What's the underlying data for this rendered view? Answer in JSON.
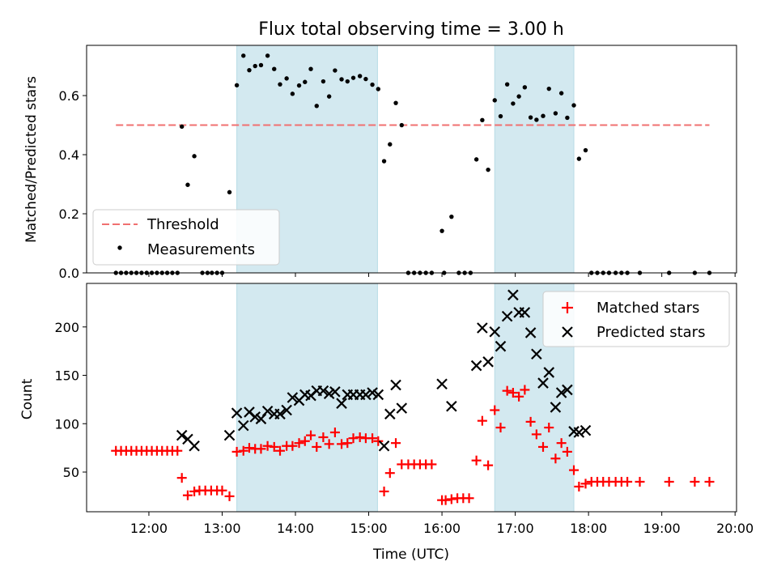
{
  "chart_data": [
    {
      "type": "scatter",
      "title": "Flux total observing time = 3.00 h",
      "xlabel": "",
      "ylabel": "Matched/Predicted stars",
      "ylim": [
        0,
        0.77
      ],
      "yticks": [
        0.0,
        0.2,
        0.4,
        0.6
      ],
      "ytick_labels": [
        "0.0",
        "0.2",
        "0.4",
        "0.6"
      ],
      "xlim_hours": [
        11.15,
        20.02
      ],
      "legend_position": "lower-left",
      "legend": [
        "Threshold",
        "Measurements"
      ],
      "colors": {
        "threshold": "#f07070",
        "measurements": "#000000",
        "shade": "#d3e9f0"
      },
      "threshold": {
        "value": 0.5,
        "x_range_hours": [
          11.55,
          19.65
        ]
      },
      "shaded_intervals_hours": [
        [
          13.2,
          15.12
        ],
        [
          16.72,
          17.8
        ]
      ],
      "measurements": [
        [
          11.55,
          0
        ],
        [
          11.62,
          0
        ],
        [
          11.69,
          0
        ],
        [
          11.76,
          0
        ],
        [
          11.83,
          0
        ],
        [
          11.9,
          0
        ],
        [
          11.97,
          0
        ],
        [
          12.04,
          0
        ],
        [
          12.11,
          0
        ],
        [
          12.18,
          0
        ],
        [
          12.25,
          0
        ],
        [
          12.32,
          0
        ],
        [
          12.39,
          0
        ],
        [
          12.45,
          0.495
        ],
        [
          12.53,
          0.298
        ],
        [
          12.62,
          0.395
        ],
        [
          12.73,
          0
        ],
        [
          12.8,
          0
        ],
        [
          12.86,
          0
        ],
        [
          12.93,
          0
        ],
        [
          13.0,
          0
        ],
        [
          13.1,
          0.273
        ],
        [
          13.2,
          0.635
        ],
        [
          13.29,
          0.735
        ],
        [
          13.37,
          0.686
        ],
        [
          13.45,
          0.7
        ],
        [
          13.53,
          0.703
        ],
        [
          13.62,
          0.735
        ],
        [
          13.71,
          0.69
        ],
        [
          13.79,
          0.638
        ],
        [
          13.88,
          0.658
        ],
        [
          13.96,
          0.606
        ],
        [
          14.05,
          0.634
        ],
        [
          14.13,
          0.646
        ],
        [
          14.21,
          0.69
        ],
        [
          14.29,
          0.565
        ],
        [
          14.38,
          0.648
        ],
        [
          14.46,
          0.597
        ],
        [
          14.54,
          0.685
        ],
        [
          14.63,
          0.655
        ],
        [
          14.71,
          0.648
        ],
        [
          14.79,
          0.66
        ],
        [
          14.88,
          0.666
        ],
        [
          14.96,
          0.656
        ],
        [
          15.05,
          0.637
        ],
        [
          15.13,
          0.622
        ],
        [
          15.21,
          0.378
        ],
        [
          15.29,
          0.435
        ],
        [
          15.37,
          0.575
        ],
        [
          15.45,
          0.5
        ],
        [
          15.54,
          0
        ],
        [
          15.62,
          0
        ],
        [
          15.7,
          0
        ],
        [
          15.78,
          0
        ],
        [
          15.86,
          0
        ],
        [
          16.0,
          0.142
        ],
        [
          16.03,
          0
        ],
        [
          16.13,
          0.19
        ],
        [
          16.23,
          0
        ],
        [
          16.31,
          0
        ],
        [
          16.39,
          0
        ],
        [
          16.47,
          0.384
        ],
        [
          16.55,
          0.517
        ],
        [
          16.63,
          0.349
        ],
        [
          16.72,
          0.584
        ],
        [
          16.8,
          0.53
        ],
        [
          16.89,
          0.638
        ],
        [
          16.97,
          0.573
        ],
        [
          17.05,
          0.597
        ],
        [
          17.13,
          0.628
        ],
        [
          17.21,
          0.526
        ],
        [
          17.29,
          0.518
        ],
        [
          17.38,
          0.531
        ],
        [
          17.46,
          0.623
        ],
        [
          17.55,
          0.54
        ],
        [
          17.63,
          0.608
        ],
        [
          17.71,
          0.525
        ],
        [
          17.8,
          0.567
        ],
        [
          17.87,
          0.386
        ],
        [
          17.96,
          0.415
        ],
        [
          18.04,
          0
        ],
        [
          18.12,
          0
        ],
        [
          18.2,
          0
        ],
        [
          18.28,
          0
        ],
        [
          18.37,
          0
        ],
        [
          18.45,
          0
        ],
        [
          18.53,
          0
        ],
        [
          18.7,
          0
        ],
        [
          19.1,
          0
        ],
        [
          19.45,
          0
        ],
        [
          19.65,
          0
        ]
      ]
    },
    {
      "type": "scatter",
      "title": "",
      "xlabel": "Time (UTC)",
      "ylabel": "Count",
      "ylim": [
        9,
        245
      ],
      "yticks": [
        50,
        100,
        150,
        200
      ],
      "ytick_labels": [
        "50",
        "100",
        "150",
        "200"
      ],
      "xlim_hours": [
        11.15,
        20.02
      ],
      "xticks_hours": [
        12,
        13,
        14,
        15,
        16,
        17,
        18,
        19,
        20
      ],
      "xtick_labels": [
        "12:00",
        "13:00",
        "14:00",
        "15:00",
        "16:00",
        "17:00",
        "18:00",
        "19:00",
        "20:00"
      ],
      "legend_position": "upper-right",
      "legend": [
        "Matched stars",
        "Predicted stars"
      ],
      "colors": {
        "matched": "#ff0000",
        "predicted": "#000000",
        "shade": "#d3e9f0"
      },
      "shaded_intervals_hours": [
        [
          13.2,
          15.12
        ],
        [
          16.72,
          17.8
        ]
      ],
      "matched_stars": [
        [
          11.55,
          72
        ],
        [
          11.62,
          72
        ],
        [
          11.69,
          72
        ],
        [
          11.76,
          72
        ],
        [
          11.83,
          72
        ],
        [
          11.9,
          72
        ],
        [
          11.97,
          72
        ],
        [
          12.04,
          72
        ],
        [
          12.11,
          72
        ],
        [
          12.18,
          72
        ],
        [
          12.25,
          72
        ],
        [
          12.32,
          72
        ],
        [
          12.39,
          72
        ],
        [
          12.45,
          44
        ],
        [
          12.53,
          26
        ],
        [
          12.62,
          30
        ],
        [
          12.69,
          31
        ],
        [
          12.77,
          31
        ],
        [
          12.85,
          31
        ],
        [
          12.93,
          31
        ],
        [
          13.0,
          31
        ],
        [
          13.1,
          25
        ],
        [
          13.2,
          71
        ],
        [
          13.29,
          72
        ],
        [
          13.37,
          75
        ],
        [
          13.45,
          74
        ],
        [
          13.53,
          74
        ],
        [
          13.62,
          77
        ],
        [
          13.71,
          76
        ],
        [
          13.79,
          72
        ],
        [
          13.88,
          77
        ],
        [
          13.96,
          77
        ],
        [
          14.05,
          80
        ],
        [
          14.13,
          82
        ],
        [
          14.21,
          88
        ],
        [
          14.29,
          76
        ],
        [
          14.38,
          86
        ],
        [
          14.46,
          79
        ],
        [
          14.54,
          91
        ],
        [
          14.63,
          79
        ],
        [
          14.71,
          80
        ],
        [
          14.79,
          85
        ],
        [
          14.88,
          86
        ],
        [
          14.96,
          85
        ],
        [
          15.05,
          85
        ],
        [
          15.13,
          82
        ],
        [
          15.21,
          30
        ],
        [
          15.29,
          49
        ],
        [
          15.37,
          80
        ],
        [
          15.45,
          58
        ],
        [
          15.54,
          58
        ],
        [
          15.62,
          58
        ],
        [
          15.7,
          58
        ],
        [
          15.78,
          58
        ],
        [
          15.86,
          58
        ],
        [
          16.0,
          21
        ],
        [
          16.05,
          21
        ],
        [
          16.13,
          22
        ],
        [
          16.21,
          23
        ],
        [
          16.29,
          23
        ],
        [
          16.37,
          23
        ],
        [
          16.47,
          62
        ],
        [
          16.55,
          103
        ],
        [
          16.63,
          57
        ],
        [
          16.72,
          114
        ],
        [
          16.8,
          96
        ],
        [
          16.89,
          134
        ],
        [
          16.97,
          132
        ],
        [
          17.05,
          128
        ],
        [
          17.13,
          135
        ],
        [
          17.21,
          102
        ],
        [
          17.29,
          89
        ],
        [
          17.38,
          76
        ],
        [
          17.46,
          96
        ],
        [
          17.55,
          64
        ],
        [
          17.63,
          80
        ],
        [
          17.71,
          71
        ],
        [
          17.8,
          52
        ],
        [
          17.87,
          35
        ],
        [
          17.96,
          38
        ],
        [
          18.04,
          40
        ],
        [
          18.12,
          40
        ],
        [
          18.2,
          40
        ],
        [
          18.28,
          40
        ],
        [
          18.37,
          40
        ],
        [
          18.45,
          40
        ],
        [
          18.53,
          40
        ],
        [
          18.7,
          40
        ],
        [
          19.1,
          40
        ],
        [
          19.45,
          40
        ],
        [
          19.65,
          40
        ]
      ],
      "predicted_stars": [
        [
          12.45,
          88
        ],
        [
          12.53,
          84
        ],
        [
          12.62,
          77
        ],
        [
          13.1,
          88
        ],
        [
          13.2,
          111
        ],
        [
          13.29,
          98
        ],
        [
          13.37,
          112
        ],
        [
          13.45,
          107
        ],
        [
          13.53,
          105
        ],
        [
          13.62,
          113
        ],
        [
          13.71,
          110
        ],
        [
          13.79,
          110
        ],
        [
          13.88,
          114
        ],
        [
          13.96,
          127
        ],
        [
          14.05,
          124
        ],
        [
          14.13,
          130
        ],
        [
          14.21,
          129
        ],
        [
          14.29,
          134
        ],
        [
          14.38,
          134
        ],
        [
          14.46,
          131
        ],
        [
          14.54,
          133
        ],
        [
          14.63,
          121
        ],
        [
          14.71,
          130
        ],
        [
          14.79,
          130
        ],
        [
          14.88,
          130
        ],
        [
          14.96,
          130
        ],
        [
          15.05,
          132
        ],
        [
          15.13,
          130
        ],
        [
          15.21,
          77
        ],
        [
          15.29,
          110
        ],
        [
          15.37,
          140
        ],
        [
          15.45,
          116
        ],
        [
          16.0,
          141
        ],
        [
          16.13,
          118
        ],
        [
          16.47,
          160
        ],
        [
          16.55,
          199
        ],
        [
          16.63,
          164
        ],
        [
          16.72,
          195
        ],
        [
          16.8,
          180
        ],
        [
          16.89,
          211
        ],
        [
          16.97,
          233
        ],
        [
          17.05,
          215
        ],
        [
          17.13,
          215
        ],
        [
          17.21,
          194
        ],
        [
          17.29,
          172
        ],
        [
          17.38,
          142
        ],
        [
          17.46,
          153
        ],
        [
          17.55,
          117
        ],
        [
          17.63,
          132
        ],
        [
          17.71,
          135
        ],
        [
          17.8,
          92
        ],
        [
          17.87,
          91
        ],
        [
          17.96,
          93
        ]
      ]
    }
  ]
}
